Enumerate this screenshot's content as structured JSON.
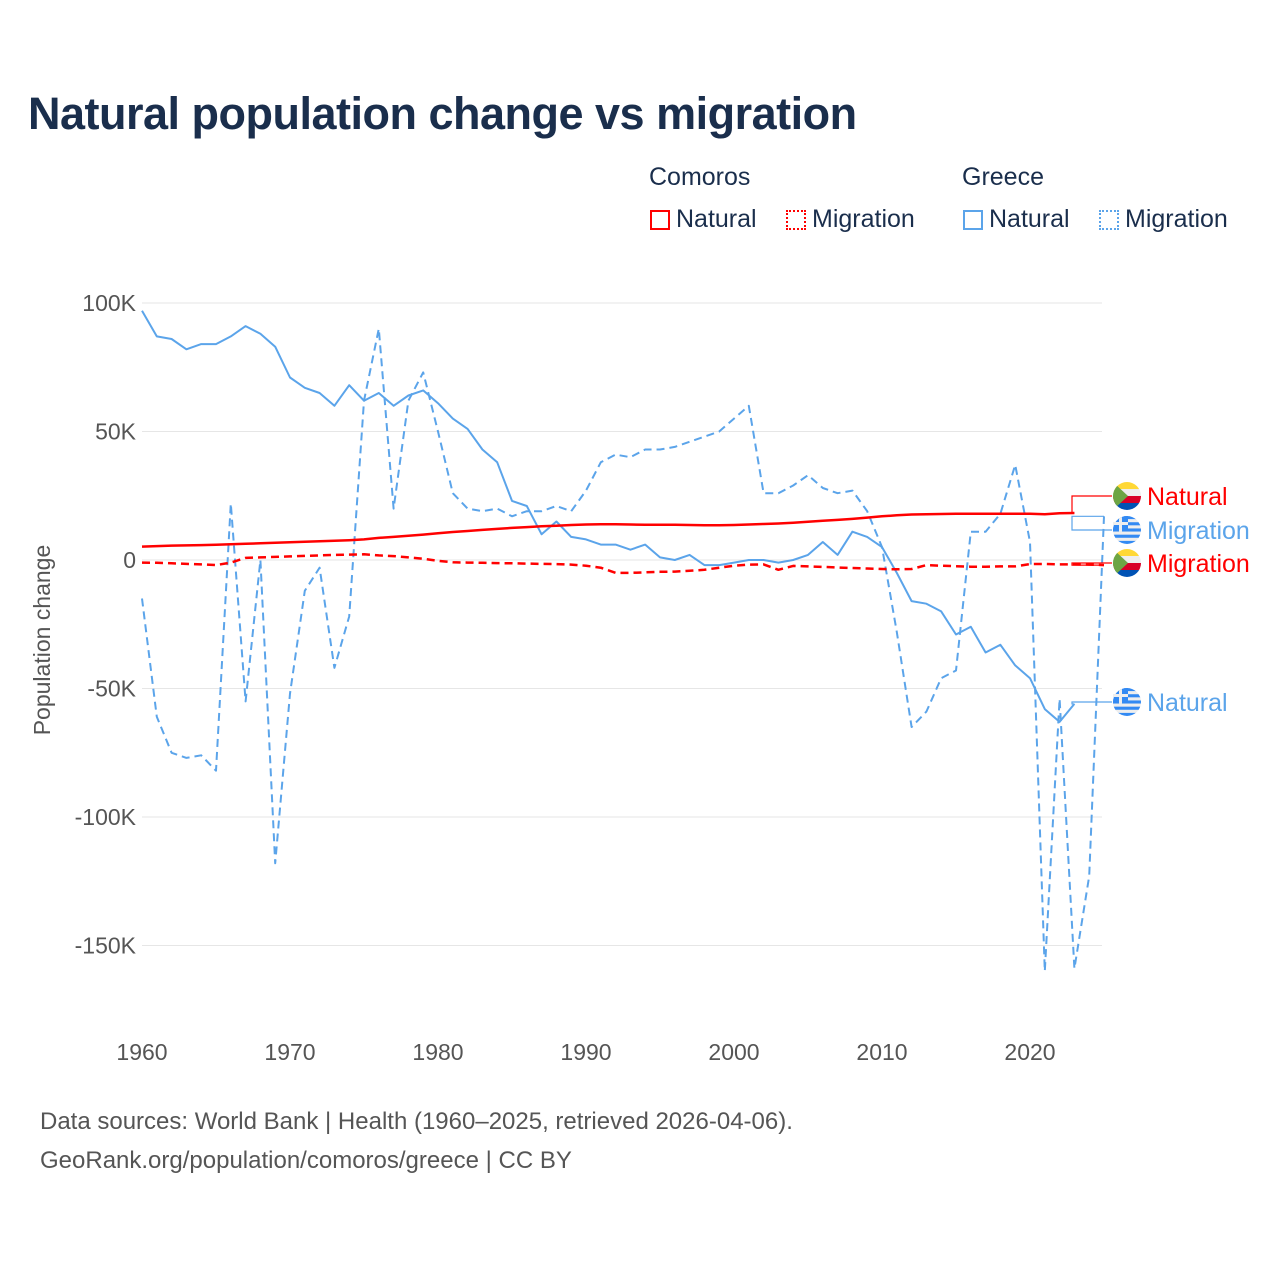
{
  "title": "Natural population change vs migration",
  "legend": {
    "groups": [
      {
        "name": "Comoros",
        "items": [
          "Natural",
          "Migration"
        ],
        "color": "#ff0000"
      },
      {
        "name": "Greece",
        "items": [
          "Natural",
          "Migration"
        ],
        "color": "#5ba4ea"
      }
    ]
  },
  "footer": {
    "line1": "Data sources: World Bank | Health (1960–2025, retrieved 2026-04-06).",
    "line2": "GeoRank.org/population/comoros/greece | CC BY"
  },
  "chart_data": {
    "type": "line",
    "title": "Natural population change vs migration",
    "xlabel": "",
    "ylabel": "Population change",
    "xlim": [
      1960,
      2025
    ],
    "ylim": [
      -165000,
      100000
    ],
    "xticks": [
      1960,
      1970,
      1980,
      1990,
      2000,
      2010,
      2020
    ],
    "yticks": [
      {
        "v": 100000,
        "label": "100K"
      },
      {
        "v": 50000,
        "label": "50K"
      },
      {
        "v": 0,
        "label": "0"
      },
      {
        "v": -50000,
        "label": "-50K"
      },
      {
        "v": -100000,
        "label": "-100K"
      },
      {
        "v": -150000,
        "label": "-150K"
      }
    ],
    "grid": true,
    "series": [
      {
        "name": "Greece Natural",
        "country": "Greece",
        "label": "Natural",
        "color": "#5ba4ea",
        "dash": false,
        "start": 1960,
        "values": [
          97000,
          87000,
          86000,
          82000,
          84000,
          84000,
          87000,
          91000,
          88000,
          83000,
          71000,
          67000,
          65000,
          60000,
          68000,
          62000,
          65000,
          60000,
          64000,
          66000,
          61000,
          55000,
          51000,
          43000,
          38000,
          23000,
          21000,
          10000,
          15000,
          9000,
          8000,
          6000,
          6000,
          4000,
          6000,
          1000,
          0,
          2000,
          -2000,
          -2000,
          -1000,
          0,
          0,
          -1000,
          0,
          2000,
          7000,
          2000,
          11000,
          9000,
          5000,
          -5000,
          -16000,
          -17000,
          -20000,
          -29000,
          -26000,
          -36000,
          -33000,
          -41000,
          -46000,
          -58000,
          -63000,
          -56000
        ]
      },
      {
        "name": "Greece Migration",
        "country": "Greece",
        "label": "Migration",
        "color": "#5ba4ea",
        "dash": true,
        "start": 1960,
        "values": [
          -15000,
          -61000,
          -75000,
          -77000,
          -76000,
          -82000,
          22000,
          -55000,
          0,
          -118000,
          -52000,
          -12000,
          -3000,
          -42000,
          -22000,
          62000,
          90000,
          20000,
          62000,
          73000,
          50000,
          26000,
          20000,
          19000,
          20000,
          17000,
          19000,
          19000,
          21000,
          19000,
          27000,
          38000,
          41000,
          40000,
          43000,
          43000,
          44000,
          46000,
          48000,
          50000,
          55000,
          60000,
          26000,
          26000,
          29000,
          33000,
          28000,
          26000,
          27000,
          19000,
          5000,
          -28000,
          -65000,
          -59000,
          -46000,
          -43000,
          11000,
          11000,
          18000,
          37000,
          7000,
          -160000,
          -54000,
          -159000,
          -123000,
          17000
        ]
      },
      {
        "name": "Comoros Natural",
        "country": "Comoros",
        "label": "Natural",
        "color": "#ff0000",
        "dash": false,
        "start": 1960,
        "values": [
          5200,
          5400,
          5600,
          5700,
          5800,
          5900,
          6100,
          6300,
          6500,
          6700,
          6900,
          7100,
          7300,
          7500,
          7700,
          8000,
          8600,
          9000,
          9400,
          9900,
          10400,
          10900,
          11300,
          11700,
          12100,
          12500,
          12800,
          13100,
          13300,
          13600,
          13800,
          13900,
          13900,
          13800,
          13700,
          13700,
          13700,
          13600,
          13500,
          13500,
          13600,
          13800,
          14000,
          14200,
          14500,
          14900,
          15300,
          15600,
          16000,
          16500,
          17000,
          17400,
          17700,
          17800,
          17900,
          18000,
          18000,
          18000,
          18000,
          18000,
          18000,
          17800,
          18200,
          18300
        ]
      },
      {
        "name": "Comoros Migration",
        "country": "Comoros",
        "label": "Migration",
        "color": "#ff0000",
        "dash": true,
        "start": 1960,
        "values": [
          -1000,
          -1100,
          -1300,
          -1500,
          -1700,
          -2000,
          -1000,
          800,
          1000,
          1200,
          1400,
          1600,
          1800,
          2000,
          2100,
          2200,
          1800,
          1500,
          1000,
          500,
          -300,
          -900,
          -1000,
          -1100,
          -1200,
          -1300,
          -1400,
          -1500,
          -1600,
          -1800,
          -2200,
          -3000,
          -5000,
          -5000,
          -4800,
          -4600,
          -4500,
          -4200,
          -3800,
          -3000,
          -2200,
          -1800,
          -1700,
          -3800,
          -2300,
          -2500,
          -2700,
          -2900,
          -3100,
          -3300,
          -3500,
          -3600,
          -3500,
          -2000,
          -2200,
          -2400,
          -2600,
          -2600,
          -2500,
          -2500,
          -1600,
          -1500,
          -1700,
          -1700,
          -1800,
          -2000
        ]
      }
    ]
  }
}
